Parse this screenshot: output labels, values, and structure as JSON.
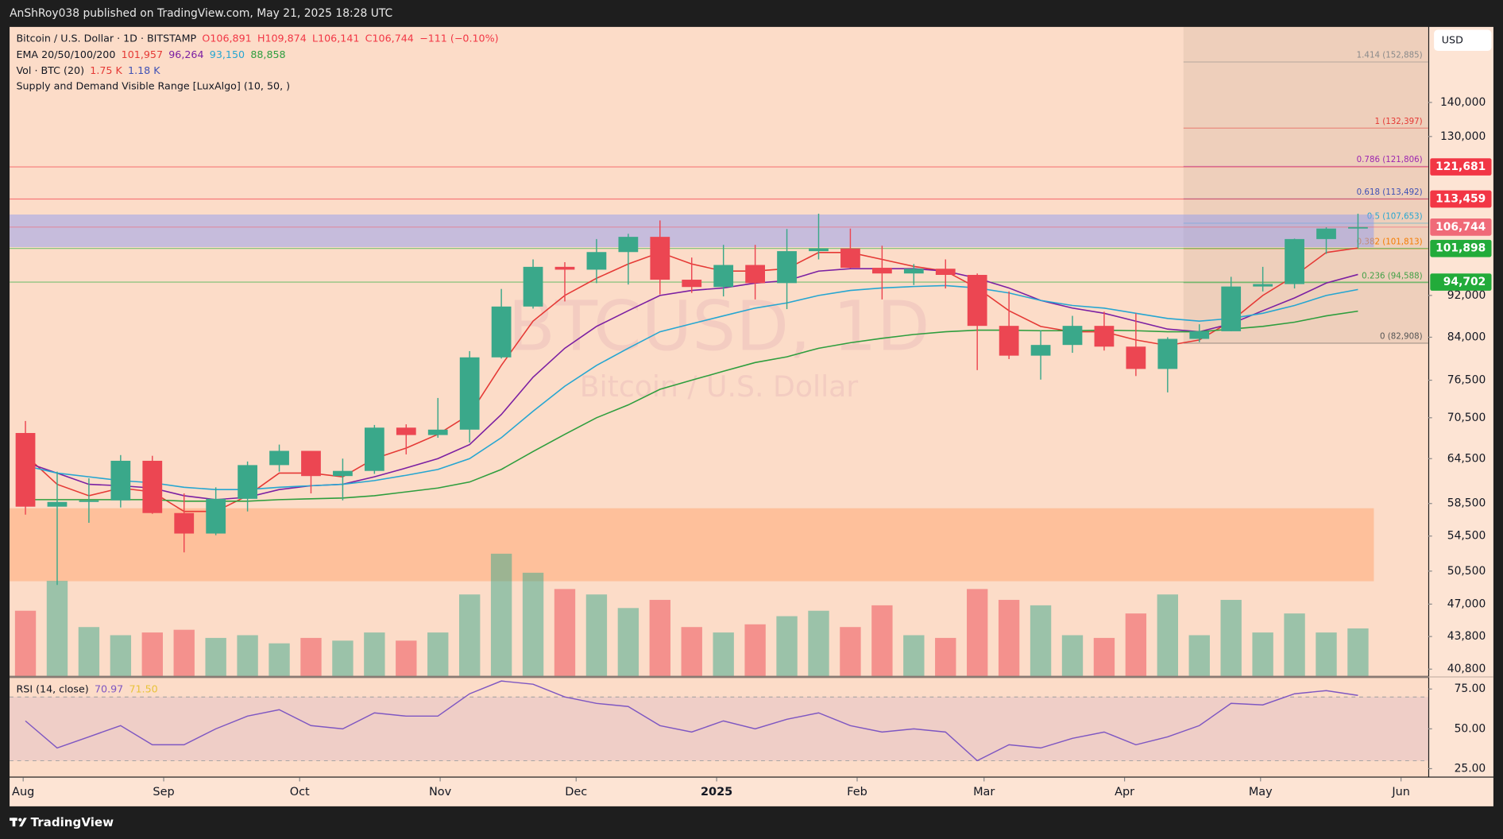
{
  "top_bar": {
    "text": "AnShRoy038 published on TradingView.com, May 21, 2025 18:28 UTC"
  },
  "footer": {
    "logo": "TradingView"
  },
  "currency_button": "USD",
  "chart_data": {
    "type": "candlestick",
    "title": "Bitcoin / U.S. Dollar · 1D · BITSTAMP",
    "ohlc_legend": [
      "O106,891",
      "H109,874",
      "L106,141",
      "C106,744",
      "−111 (−0.10%)"
    ],
    "ohlc_legend_color": "#f23645",
    "indicator_legends": [
      {
        "name": "EMA 20/50/100/200",
        "values": [
          "101,957",
          "96,264",
          "93,150",
          "88,858"
        ],
        "colors": [
          "#e53935",
          "#7b1fa2",
          "#26a6d1",
          "#2e9e3e"
        ]
      },
      {
        "name": "Vol · BTC (20)",
        "values": [
          "1.75 K",
          "1.18 K"
        ],
        "colors": [
          "#e53935",
          "#3f51b5"
        ]
      },
      {
        "name": "Supply and Demand Visible Range [LuxAlgo] (10, 50, )"
      }
    ],
    "watermark": [
      "BTCUSD, 1D",
      "Bitcoin / U.S. Dollar"
    ],
    "x": [
      "2024-07-29",
      "2024-08-05",
      "2024-08-12",
      "2024-08-19",
      "2024-08-26",
      "2024-09-02",
      "2024-09-09",
      "2024-09-16",
      "2024-09-23",
      "2024-09-30",
      "2024-10-07",
      "2024-10-14",
      "2024-10-21",
      "2024-10-28",
      "2024-11-04",
      "2024-11-11",
      "2024-11-18",
      "2024-11-25",
      "2024-12-02",
      "2024-12-09",
      "2024-12-16",
      "2024-12-23",
      "2024-12-30",
      "2025-01-06",
      "2025-01-13",
      "2025-01-20",
      "2025-01-27",
      "2025-02-03",
      "2025-02-10",
      "2025-02-17",
      "2025-02-24",
      "2025-03-03",
      "2025-03-10",
      "2025-03-17",
      "2025-03-24",
      "2025-03-31",
      "2025-04-07",
      "2025-04-14",
      "2025-04-21",
      "2025-04-28",
      "2025-05-05",
      "2025-05-12",
      "2025-05-19"
    ],
    "open": [
      68200,
      58100,
      58700,
      58900,
      64200,
      57300,
      54800,
      59100,
      63600,
      65600,
      62100,
      62800,
      69000,
      67900,
      68700,
      80400,
      89800,
      97900,
      97300,
      101100,
      104500,
      95200,
      93700,
      98300,
      94500,
      101300,
      101900,
      97700,
      96500,
      97500,
      96200,
      86100,
      80700,
      82600,
      86100,
      82300,
      78400,
      83700,
      85100,
      93800,
      94300,
      104000,
      106400
    ],
    "high": [
      70000,
      62700,
      61800,
      65000,
      64900,
      59800,
      60600,
      64100,
      66500,
      65600,
      64500,
      69400,
      69500,
      73600,
      81500,
      93300,
      99500,
      98900,
      104000,
      105200,
      108300,
      99900,
      102700,
      102700,
      106300,
      109900,
      106400,
      102500,
      98500,
      99500,
      96500,
      92800,
      85300,
      88000,
      88800,
      88500,
      84000,
      86400,
      95800,
      97900,
      104100,
      106700,
      109900
    ],
    "low": [
      57100,
      49000,
      56100,
      58000,
      57200,
      52600,
      54600,
      57500,
      62700,
      59800,
      58900,
      62400,
      65100,
      67500,
      66800,
      80200,
      89400,
      90800,
      94500,
      94200,
      92200,
      92500,
      91800,
      91200,
      89300,
      99500,
      97600,
      91200,
      94100,
      93400,
      78200,
      80100,
      76600,
      81200,
      81600,
      77200,
      74500,
      83100,
      85100,
      92800,
      93400,
      100700,
      102000
    ],
    "close": [
      58100,
      58700,
      58900,
      64200,
      57300,
      54800,
      59100,
      63600,
      65600,
      62100,
      62800,
      69000,
      67900,
      68700,
      80400,
      89800,
      97900,
      97300,
      101100,
      104500,
      95200,
      93700,
      98300,
      94500,
      101300,
      101900,
      97700,
      96500,
      97500,
      96200,
      86100,
      80700,
      82600,
      86100,
      82300,
      78400,
      83700,
      85100,
      93800,
      94300,
      104000,
      106400,
      106744
    ],
    "up_color": "#3aa88a",
    "down_color": "#ec4652",
    "ema": [
      {
        "color": "#e53935",
        "values": [
          65000,
          61000,
          59500,
          60500,
          60000,
          57500,
          57500,
          59500,
          62500,
          62500,
          62000,
          64500,
          66000,
          68000,
          71000,
          79000,
          87000,
          92000,
          95500,
          98500,
          101000,
          98500,
          97000,
          97000,
          97500,
          101000,
          101000,
          99500,
          98000,
          97000,
          93500,
          89000,
          86000,
          85000,
          85000,
          83500,
          82500,
          83500,
          87000,
          92000,
          96000,
          101000,
          102000
        ]
      },
      {
        "color": "#7b1fa2",
        "values": [
          64000,
          62500,
          61000,
          60800,
          60500,
          59500,
          59000,
          59300,
          60300,
          60800,
          61000,
          62000,
          63200,
          64500,
          66500,
          71000,
          77000,
          82000,
          86000,
          89000,
          92000,
          93000,
          93500,
          94500,
          95000,
          97000,
          97500,
          97500,
          97500,
          97000,
          95500,
          93500,
          91000,
          89500,
          88500,
          87000,
          85500,
          85000,
          86500,
          89000,
          91500,
          94500,
          96300
        ]
      },
      {
        "color": "#26a6d1",
        "values": [
          63500,
          62500,
          62000,
          61500,
          61200,
          60600,
          60300,
          60300,
          60600,
          60800,
          61000,
          61500,
          62200,
          63000,
          64500,
          67500,
          71500,
          75500,
          79000,
          82000,
          85000,
          86500,
          88000,
          89500,
          90500,
          92000,
          93000,
          93500,
          93800,
          94000,
          93500,
          92500,
          91000,
          90000,
          89500,
          88500,
          87500,
          87000,
          87500,
          88500,
          90000,
          92000,
          93200
        ]
      },
      {
        "color": "#2e9e3e",
        "values": [
          59000,
          59000,
          59000,
          59000,
          59000,
          58800,
          58800,
          58800,
          59000,
          59100,
          59200,
          59500,
          60000,
          60500,
          61300,
          63000,
          65500,
          68000,
          70500,
          72500,
          75000,
          76500,
          78000,
          79500,
          80500,
          82000,
          83000,
          83800,
          84500,
          85000,
          85300,
          85300,
          85200,
          85200,
          85300,
          85200,
          85000,
          85000,
          85500,
          86000,
          86800,
          88000,
          88900
        ]
      }
    ],
    "volume": {
      "values": [
        2.4,
        3.5,
        1.8,
        1.5,
        1.6,
        1.7,
        1.4,
        1.5,
        1.2,
        1.4,
        1.3,
        1.6,
        1.3,
        1.6,
        3.0,
        4.5,
        3.8,
        3.2,
        3.0,
        2.5,
        2.8,
        1.8,
        1.6,
        1.9,
        2.2,
        2.4,
        1.8,
        2.6,
        1.5,
        1.4,
        3.2,
        2.8,
        2.6,
        1.5,
        1.4,
        2.3,
        3.0,
        1.5,
        2.8,
        1.6,
        2.3,
        1.6,
        1.75
      ],
      "vlim": [
        0,
        6
      ]
    },
    "ylim": [
      40200,
      165000
    ],
    "log_scale": true,
    "grid": false,
    "yticks": [
      {
        "value": 140000,
        "label": "140,000"
      },
      {
        "value": 130000,
        "label": "130,000"
      },
      {
        "value": 92000,
        "label": "92,000"
      },
      {
        "value": 84000,
        "label": "84,000"
      },
      {
        "value": 76500,
        "label": "76,500"
      },
      {
        "value": 70500,
        "label": "70,500"
      },
      {
        "value": 64500,
        "label": "64,500"
      },
      {
        "value": 58500,
        "label": "58,500"
      },
      {
        "value": 54500,
        "label": "54,500"
      },
      {
        "value": 50500,
        "label": "50,500"
      },
      {
        "value": 47000,
        "label": "47,000"
      },
      {
        "value": 43800,
        "label": "43,800"
      },
      {
        "value": 40800,
        "label": "40,800"
      }
    ],
    "xlim": [
      "2024-07-29",
      "2025-06-07"
    ],
    "xticks": [
      {
        "value": "2024-08-01",
        "label": "Aug"
      },
      {
        "value": "2024-09-01",
        "label": "Sep"
      },
      {
        "value": "2024-10-01",
        "label": "Oct"
      },
      {
        "value": "2024-11-01",
        "label": "Nov"
      },
      {
        "value": "2024-12-01",
        "label": "Dec"
      },
      {
        "value": "2025-01-01",
        "label": "2025"
      },
      {
        "value": "2025-02-01",
        "label": "Feb"
      },
      {
        "value": "2025-03-01",
        "label": "Mar"
      },
      {
        "value": "2025-04-01",
        "label": "Apr"
      },
      {
        "value": "2025-05-01",
        "label": "May"
      },
      {
        "value": "2025-06-01",
        "label": "Jun"
      }
    ],
    "zones": [
      {
        "range": [
          102200,
          109700
        ],
        "color": "#8f9cf0"
      },
      {
        "range": [
          49400,
          57900
        ],
        "color": "#ffa36e"
      }
    ],
    "fib": {
      "start": "2025-04-14",
      "levels": [
        {
          "value": 152885,
          "label": "1.414 (152,885)",
          "color": "#8a8a8a"
        },
        {
          "value": 132397,
          "label": "1 (132,397)",
          "color": "#e53935"
        },
        {
          "value": 121806,
          "label": "0.786 (121,806)",
          "color": "#9c27b0"
        },
        {
          "value": 113492,
          "label": "0.618 (113,492)",
          "color": "#3f51b5"
        },
        {
          "value": 107653,
          "label": "0.5 (107,653)",
          "color": "#26a6d1"
        },
        {
          "value": 101813,
          "label": "0.382 (101,813)",
          "color": "#f57c00"
        },
        {
          "value": 94588,
          "label": "0.236 (94,588)",
          "color": "#43a047"
        },
        {
          "value": 82908,
          "label": "0 (82,908)",
          "color": "#555555"
        }
      ]
    },
    "price_lines": [
      {
        "value": 121681,
        "label": "121,681",
        "color": "#f23645"
      },
      {
        "value": 113459,
        "label": "113,459",
        "color": "#f23645"
      },
      {
        "value": 106744,
        "label": "106,744",
        "color": "#f06a78"
      },
      {
        "value": 101898,
        "label": "101,898",
        "color": "#22ab3a"
      },
      {
        "value": 94702,
        "label": "94,702",
        "color": "#22ab3a"
      }
    ],
    "rsi": {
      "title": "RSI (14, close)",
      "legend": [
        "70.97",
        "71.50"
      ],
      "legend_colors": [
        "#7e57c2",
        "#e8c33a"
      ],
      "color": "#7e57c2",
      "values": [
        55,
        38,
        45,
        52,
        40,
        40,
        50,
        58,
        62,
        52,
        50,
        60,
        58,
        58,
        72,
        80,
        78,
        70,
        66,
        64,
        52,
        48,
        55,
        50,
        56,
        60,
        52,
        48,
        50,
        48,
        30,
        40,
        38,
        44,
        48,
        40,
        45,
        52,
        66,
        65,
        72,
        74,
        71
      ],
      "ylim": [
        20,
        82
      ],
      "yticks": [
        {
          "value": 25,
          "label": "25.00"
        },
        {
          "value": 50,
          "label": "50.00"
        },
        {
          "value": 75,
          "label": "75.00"
        }
      ],
      "bands": [
        30,
        70
      ]
    }
  }
}
